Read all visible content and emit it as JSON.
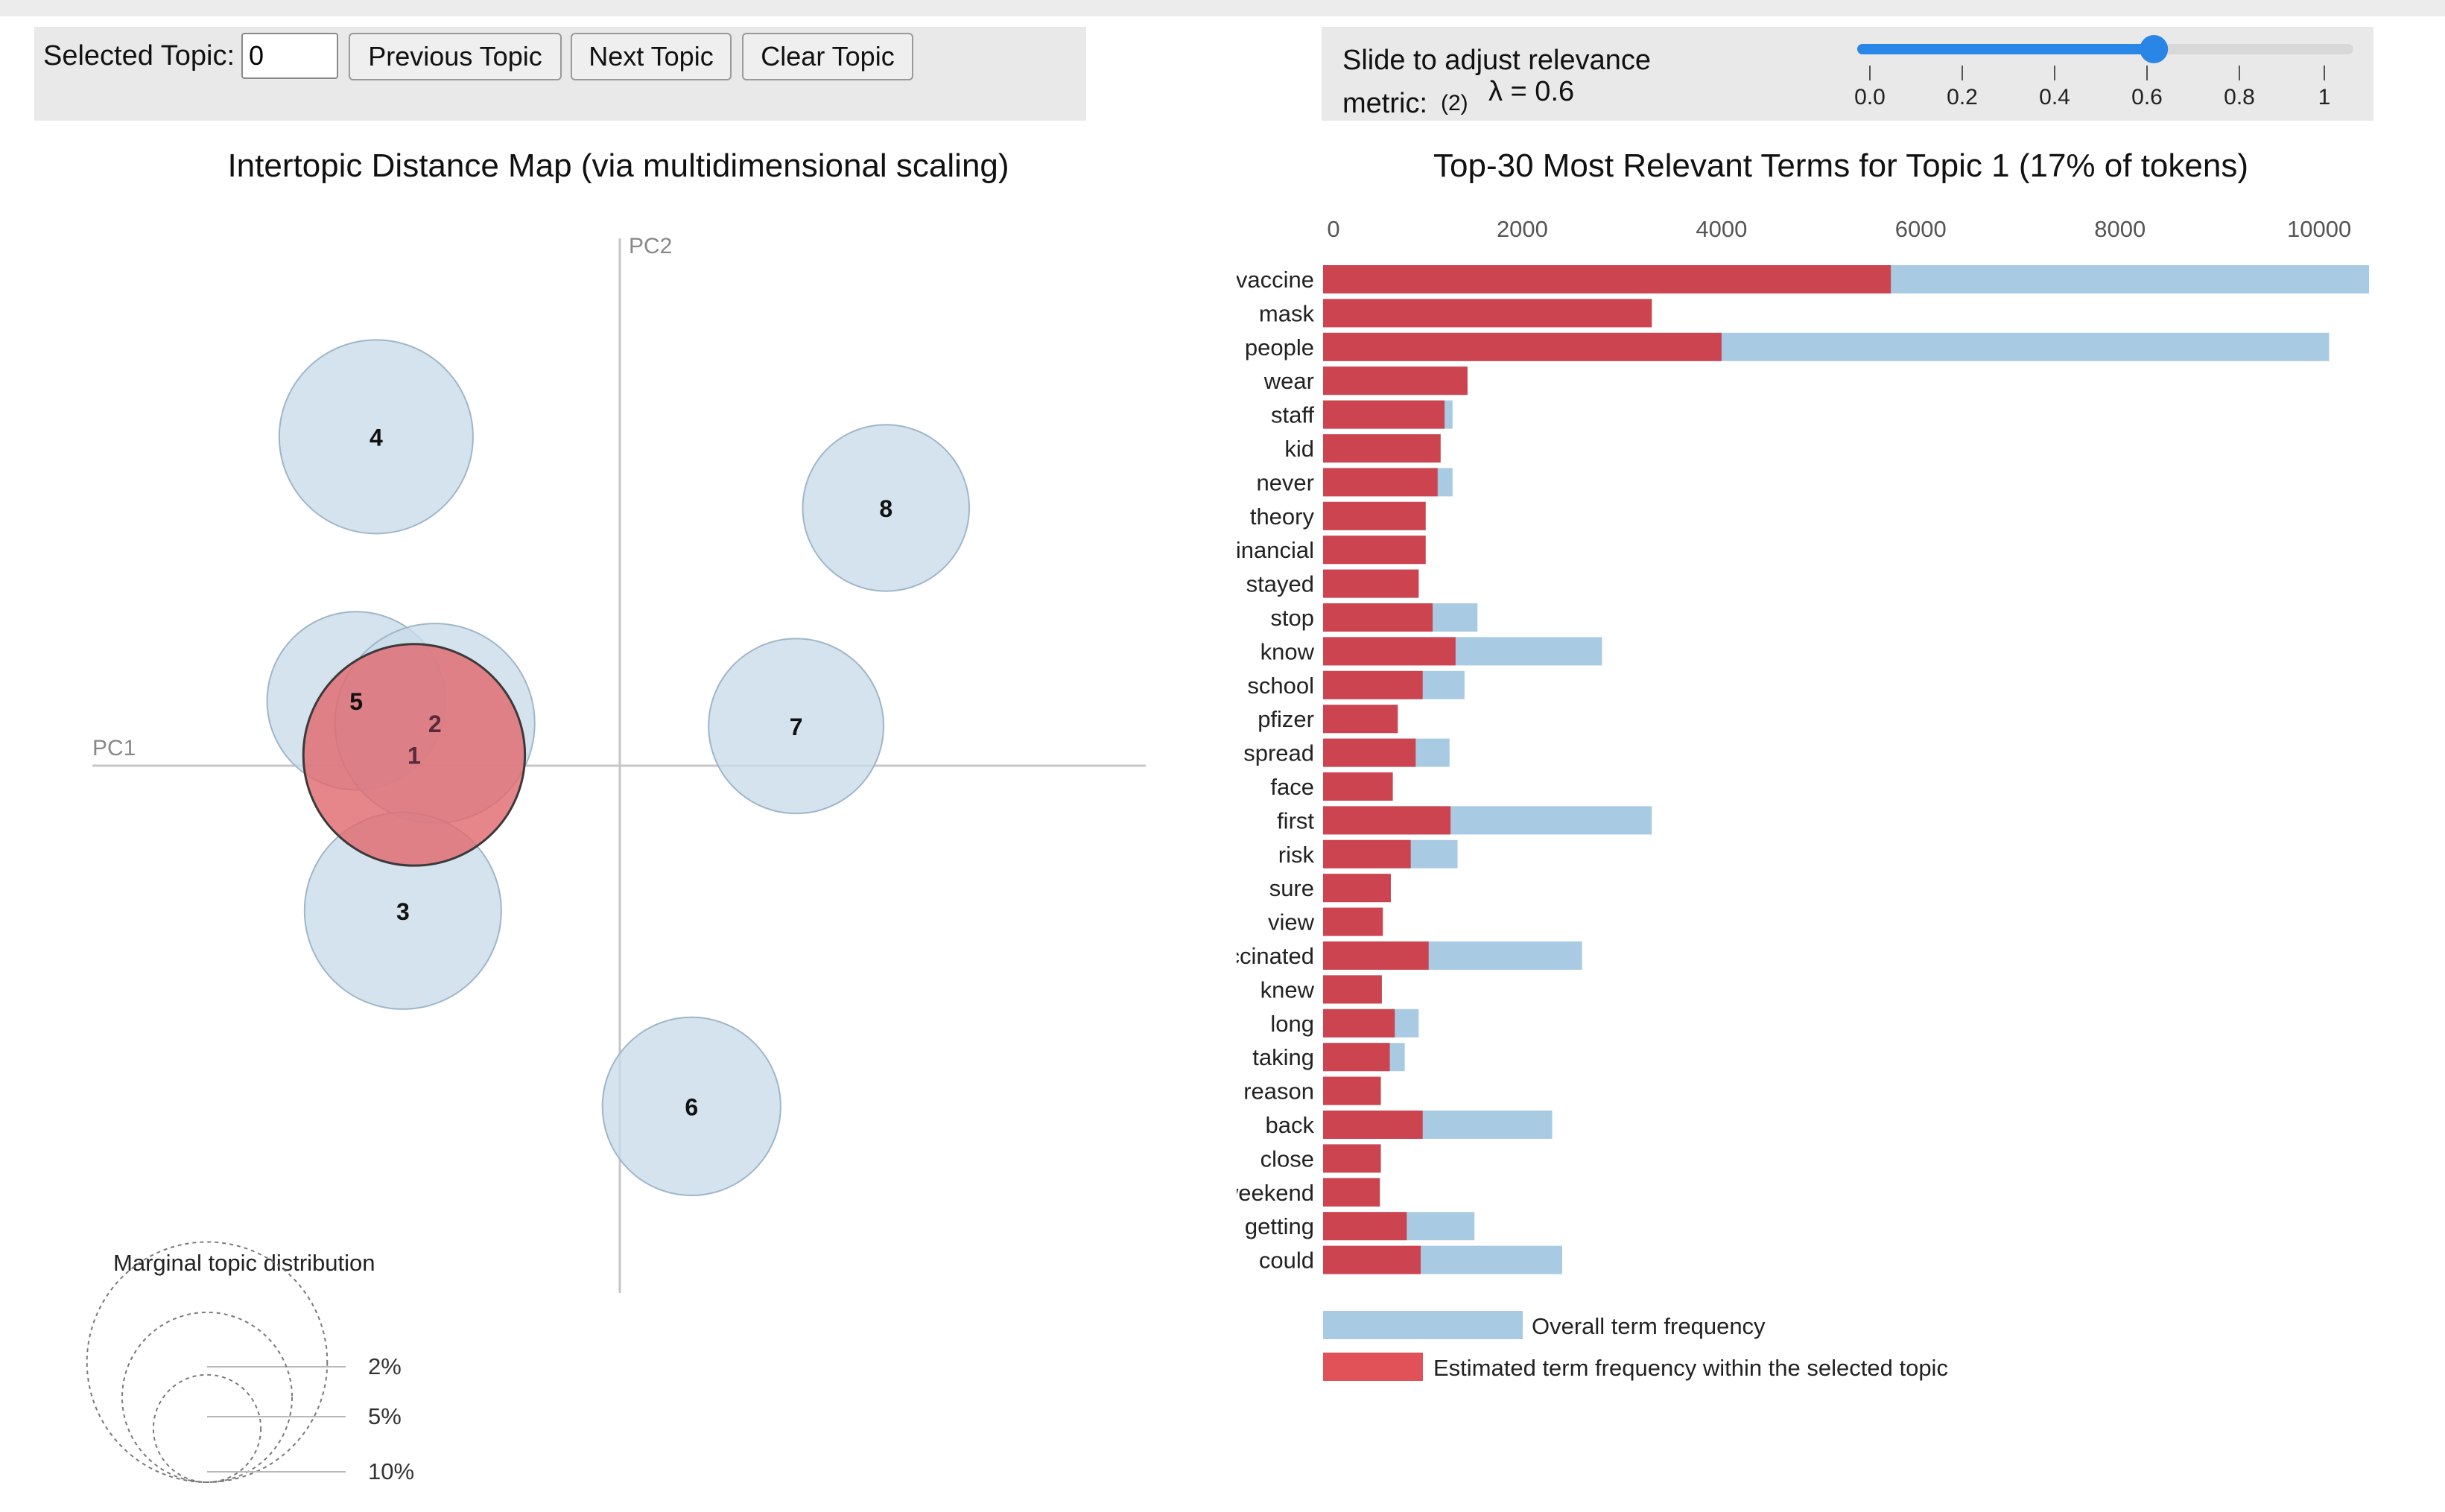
{
  "controls": {
    "selected_topic_label": "Selected Topic:",
    "selected_topic_value": "0",
    "previous_label": "Previous Topic",
    "next_label": "Next Topic",
    "clear_label": "Clear Topic",
    "slider_label_line1": "Slide to adjust relevance",
    "slider_label_line2": "metric:",
    "slider_footnote": "(2)",
    "lambda_text": "λ = 0.6",
    "lambda_value": 0.6,
    "slider_ticks": [
      "0.0",
      "0.2",
      "0.4",
      "0.6",
      "0.8",
      "1"
    ]
  },
  "topic_map": {
    "title": "Intertopic Distance Map (via multidimensional scaling)",
    "axis_x_label": "PC1",
    "axis_y_label": "PC2",
    "selected_topic": "1",
    "topics": [
      {
        "id": "4",
        "pc1": -0.282,
        "pc2": 0.365,
        "share": 6.5
      },
      {
        "id": "8",
        "pc1": 0.308,
        "pc2": 0.286,
        "share": 4.8
      },
      {
        "id": "5",
        "pc1": -0.305,
        "pc2": 0.072,
        "share": 5.5
      },
      {
        "id": "2",
        "pc1": -0.214,
        "pc2": 0.047,
        "share": 6.9
      },
      {
        "id": "1",
        "pc1": -0.238,
        "pc2": 0.012,
        "share": 8.5
      },
      {
        "id": "7",
        "pc1": 0.204,
        "pc2": 0.044,
        "share": 5.3
      },
      {
        "id": "3",
        "pc1": -0.251,
        "pc2": -0.161,
        "share": 6.7
      },
      {
        "id": "6",
        "pc1": 0.083,
        "pc2": -0.378,
        "share": 5.5
      }
    ],
    "legend_title": "Marginal topic distribution",
    "legend_levels": [
      {
        "label": "2%",
        "share": 2
      },
      {
        "label": "5%",
        "share": 5
      },
      {
        "label": "10%",
        "share": 10
      }
    ]
  },
  "chart_data": {
    "type": "bar",
    "orientation": "horizontal",
    "title": "Top-30 Most Relevant Terms for Topic 1 (17% of tokens)",
    "xlim": [
      0,
      10500
    ],
    "x_ticks": [
      0,
      2000,
      4000,
      6000,
      8000,
      10000
    ],
    "categories": [
      "vaccine",
      "mask",
      "people",
      "wear",
      "staff",
      "kid",
      "never",
      "theory",
      "financial",
      "stayed",
      "stop",
      "know",
      "school",
      "pfizer",
      "spread",
      "face",
      "first",
      "risk",
      "sure",
      "view",
      "vaccinated",
      "knew",
      "long",
      "taking",
      "reason",
      "back",
      "close",
      "weekend",
      "getting",
      "could"
    ],
    "series": [
      {
        "name": "Overall term frequency",
        "color": "#a8cbe3",
        "values": [
          10500,
          3300,
          10100,
          1450,
          1300,
          1180,
          1300,
          1030,
          1030,
          960,
          1550,
          2800,
          1420,
          750,
          1270,
          700,
          3300,
          1350,
          680,
          600,
          2600,
          590,
          960,
          820,
          580,
          2300,
          580,
          570,
          1520,
          2400
        ]
      },
      {
        "name": "Estimated term frequency within the selected topic",
        "color": "#cc4450",
        "values": [
          5700,
          3300,
          4000,
          1450,
          1220,
          1180,
          1150,
          1030,
          1030,
          960,
          1100,
          1330,
          1000,
          750,
          930,
          700,
          1280,
          880,
          680,
          600,
          1060,
          590,
          720,
          670,
          580,
          1000,
          580,
          570,
          840,
          980
        ]
      }
    ]
  },
  "legend": {
    "overall_label": "Overall term frequency",
    "topic_label": "Estimated term frequency within the selected topic"
  },
  "colors": {
    "topic_fill": "#c9dbe9",
    "topic_stroke": "#9fb6c9",
    "selected_fill": "#e06a70",
    "slider_accent": "#2a86e6",
    "bar_overall": "#a8cbe3",
    "bar_topic": "#cc4450"
  }
}
